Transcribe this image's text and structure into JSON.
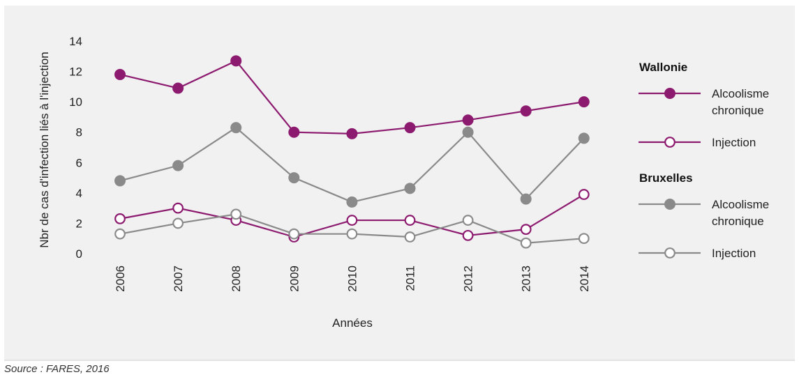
{
  "chart_data": {
    "type": "line",
    "categories": [
      "2006",
      "2007",
      "2008",
      "2009",
      "2010",
      "2011",
      "2012",
      "2013",
      "2014"
    ],
    "ylabel": "Nbr de cas d'infection liés à l'injection",
    "xlabel": "Années",
    "ylim": [
      0,
      14
    ],
    "yticks": [
      "0",
      "2",
      "4",
      "6",
      "8",
      "10",
      "12",
      "14"
    ],
    "grid": false,
    "legend_position": "right",
    "groups": [
      {
        "name": "Wallonie",
        "series": [
          {
            "name": "Alcoolisme chronique",
            "legend_lines": [
              "Alcoolisme",
              "chronique"
            ],
            "marker": "filled",
            "color": "#8c1a6f",
            "values": [
              11.8,
              10.9,
              12.7,
              8.0,
              7.9,
              8.3,
              8.8,
              9.4,
              10.0
            ]
          },
          {
            "name": "Injection",
            "legend_lines": [
              "Injection"
            ],
            "marker": "open",
            "color": "#8c1a6f",
            "values": [
              2.3,
              3.0,
              2.2,
              1.1,
              2.2,
              2.2,
              1.2,
              1.6,
              3.9
            ]
          }
        ]
      },
      {
        "name": "Bruxelles",
        "series": [
          {
            "name": "Alcoolisme chronique",
            "legend_lines": [
              "Alcoolisme",
              "chronique"
            ],
            "marker": "filled",
            "color": "#8a8a8a",
            "values": [
              4.8,
              5.8,
              8.3,
              5.0,
              3.4,
              4.3,
              8.0,
              3.6,
              7.6
            ]
          },
          {
            "name": "Injection",
            "legend_lines": [
              "Injection"
            ],
            "marker": "open",
            "color": "#8a8a8a",
            "values": [
              1.3,
              2.0,
              2.6,
              1.3,
              1.3,
              1.1,
              2.2,
              0.7,
              1.0
            ]
          }
        ]
      }
    ]
  },
  "source": "Source : FARES, 2016"
}
